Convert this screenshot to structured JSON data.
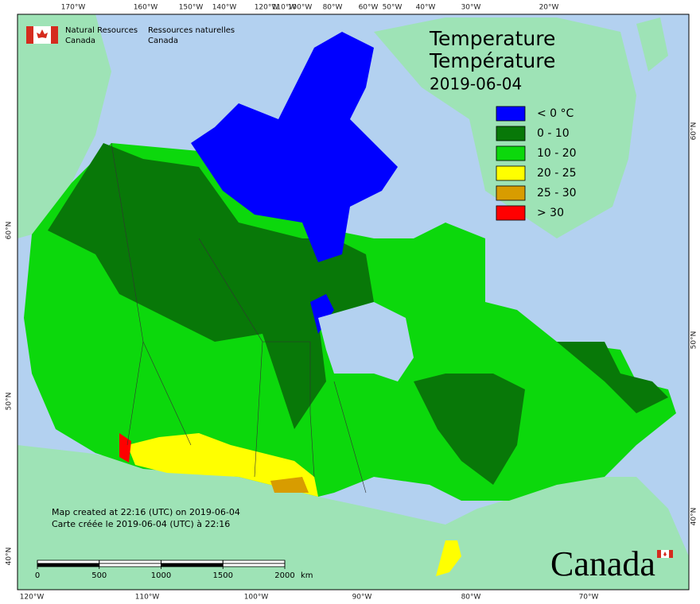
{
  "header": {
    "agency_en": [
      "Natural Resources",
      "Canada"
    ],
    "agency_fr": [
      "Ressources naturelles",
      "Canada"
    ]
  },
  "title": [
    "Temperature",
    "Température"
  ],
  "date": "2019-06-04",
  "legend": [
    {
      "label": "< 0 °C",
      "color": "#0000ff"
    },
    {
      "label": "0 - 10",
      "color": "#087808"
    },
    {
      "label": "10 - 20",
      "color": "#0cd80c"
    },
    {
      "label": "20 - 25",
      "color": "#ffff00"
    },
    {
      "label": "25 - 30",
      "color": "#d89c00"
    },
    {
      "label": "> 30",
      "color": "#ff0000"
    }
  ],
  "graticule": {
    "top": [
      "170°W",
      "160°W",
      "150°W",
      "140°W",
      "120°W",
      "110°W",
      "100°W",
      "80°W",
      "60°W",
      "50°W",
      "40°W",
      "30°W",
      "20°W"
    ],
    "bottom": [
      "120°W",
      "110°W",
      "100°W",
      "90°W",
      "80°W",
      "70°W"
    ],
    "left": [
      "60°N",
      "50°N",
      "40°N"
    ],
    "right": [
      "60°N",
      "50°N",
      "40°N"
    ]
  },
  "credits": [
    "Map created at 22:16 (UTC) on 2019-06-04",
    "Carte créée le 2019-06-04 (UTC) à 22:16"
  ],
  "scale_bar": {
    "ticks": [
      0,
      500,
      1000,
      1500,
      2000
    ],
    "unit": "km"
  },
  "wordmark": "Canada"
}
